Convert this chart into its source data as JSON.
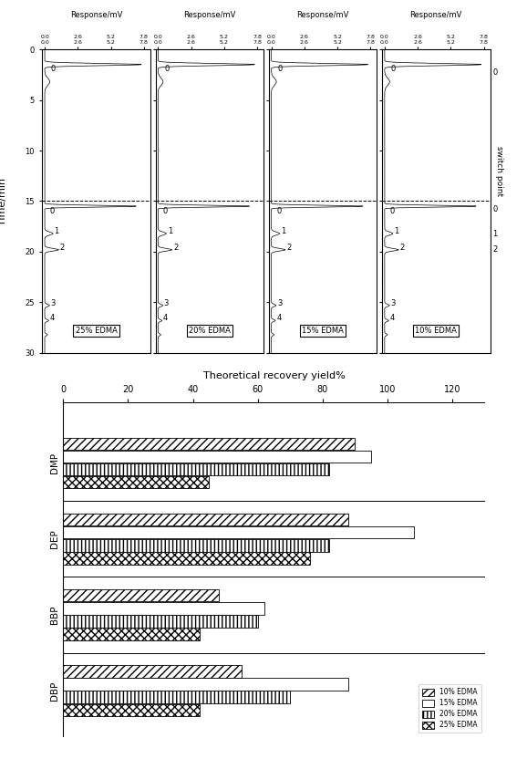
{
  "top_panel": {
    "subplots": [
      {
        "label": "25% EDMA"
      },
      {
        "label": "20% EDMA"
      },
      {
        "label": "15% EDMA"
      },
      {
        "label": "10% EDMA"
      }
    ],
    "response_ticks": [
      0.0,
      2.6,
      5.2,
      7.8
    ],
    "time_ticks": [
      0,
      5,
      10,
      15,
      20,
      25,
      30
    ],
    "time_label": "Time/min",
    "response_label": "Response/mV",
    "switch_point_label": "switch point",
    "dashed_line_time": 15
  },
  "bottom_panel": {
    "title": "Theoretical recovery yield%",
    "categories": [
      "DMP",
      "DEP",
      "BBP",
      "DBP"
    ],
    "x_ticks": [
      0,
      20,
      40,
      60,
      80,
      100,
      120
    ],
    "xlim": [
      0,
      130
    ],
    "series_labels": [
      "10% EDMA",
      "15% EDMA",
      "20% EDMA",
      "25% EDMA"
    ],
    "values": {
      "DMP": [
        90,
        95,
        82,
        45
      ],
      "DEP": [
        88,
        108,
        82,
        76
      ],
      "BBP": [
        48,
        62,
        60,
        42
      ],
      "DBP": [
        55,
        88,
        70,
        42
      ]
    },
    "hatch_patterns": [
      "////",
      "====",
      "||||",
      "xxxx"
    ],
    "bar_height": 0.17
  }
}
